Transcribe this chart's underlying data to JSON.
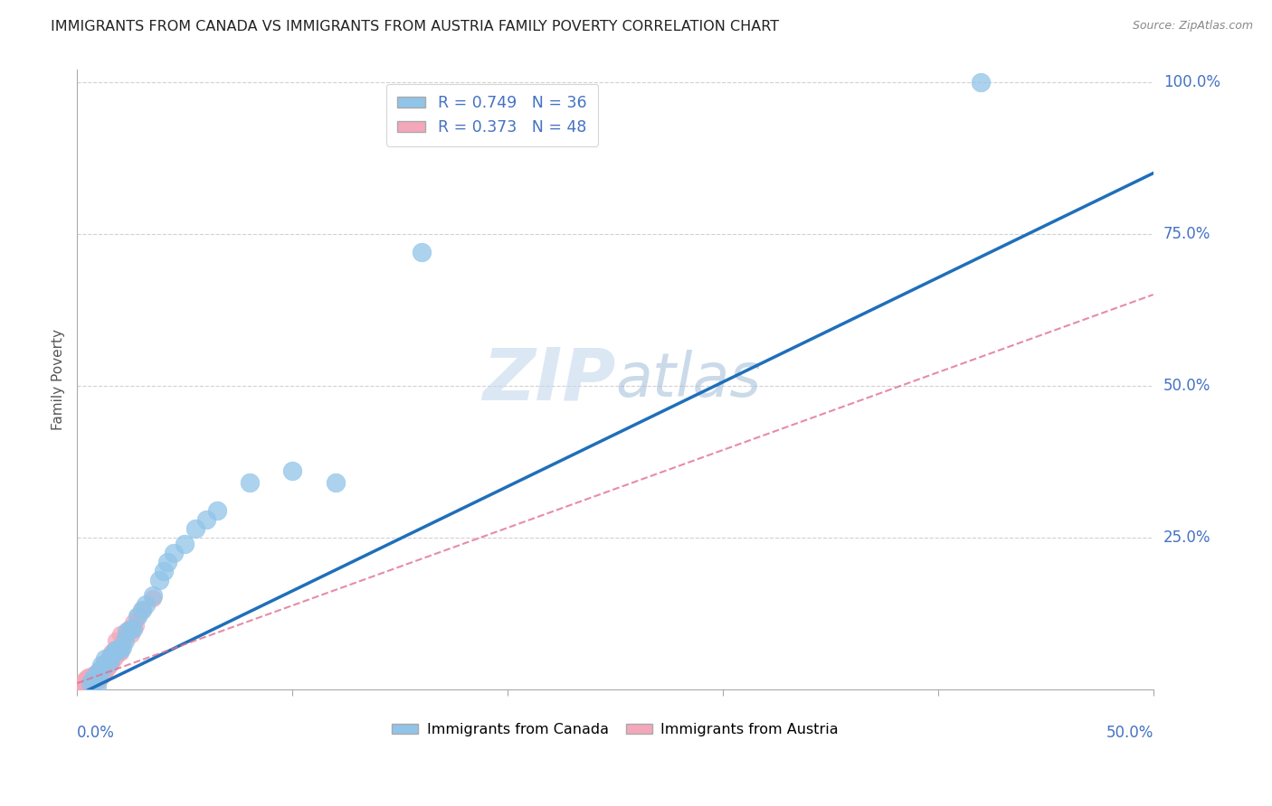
{
  "title": "IMMIGRANTS FROM CANADA VS IMMIGRANTS FROM AUSTRIA FAMILY POVERTY CORRELATION CHART",
  "source": "Source: ZipAtlas.com",
  "ylabel": "Family Poverty",
  "watermark_zip": "ZIP",
  "watermark_atlas": "atlas",
  "canada_R": 0.749,
  "canada_N": 36,
  "austria_R": 0.373,
  "austria_N": 48,
  "canada_color": "#90c4e8",
  "canada_line_color": "#1f6fba",
  "austria_color": "#f4a7bb",
  "austria_line_color": "#e07090",
  "background_color": "#ffffff",
  "grid_color": "#cccccc",
  "title_color": "#222222",
  "axis_label_color": "#4472c4",
  "canada_scatter_x": [
    0.006,
    0.007,
    0.008,
    0.009,
    0.01,
    0.01,
    0.011,
    0.012,
    0.013,
    0.015,
    0.016,
    0.017,
    0.018,
    0.02,
    0.021,
    0.022,
    0.023,
    0.025,
    0.026,
    0.028,
    0.03,
    0.032,
    0.035,
    0.038,
    0.04,
    0.042,
    0.045,
    0.05,
    0.055,
    0.06,
    0.065,
    0.08,
    0.1,
    0.12,
    0.16,
    0.42
  ],
  "canada_scatter_y": [
    0.01,
    0.015,
    0.02,
    0.005,
    0.025,
    0.03,
    0.04,
    0.035,
    0.05,
    0.045,
    0.055,
    0.06,
    0.065,
    0.065,
    0.07,
    0.08,
    0.095,
    0.1,
    0.1,
    0.12,
    0.13,
    0.14,
    0.155,
    0.18,
    0.195,
    0.21,
    0.225,
    0.24,
    0.265,
    0.28,
    0.295,
    0.34,
    0.36,
    0.34,
    0.72,
    1.0
  ],
  "austria_scatter_x": [
    0.002,
    0.003,
    0.003,
    0.004,
    0.004,
    0.005,
    0.005,
    0.005,
    0.006,
    0.006,
    0.006,
    0.007,
    0.007,
    0.008,
    0.008,
    0.009,
    0.009,
    0.01,
    0.01,
    0.01,
    0.011,
    0.011,
    0.012,
    0.012,
    0.013,
    0.013,
    0.014,
    0.015,
    0.015,
    0.016,
    0.016,
    0.017,
    0.017,
    0.018,
    0.018,
    0.019,
    0.02,
    0.02,
    0.021,
    0.022,
    0.023,
    0.024,
    0.025,
    0.026,
    0.027,
    0.028,
    0.03,
    0.035
  ],
  "austria_scatter_y": [
    0.005,
    0.008,
    0.015,
    0.01,
    0.018,
    0.008,
    0.012,
    0.02,
    0.01,
    0.015,
    0.022,
    0.012,
    0.018,
    0.015,
    0.025,
    0.018,
    0.028,
    0.015,
    0.022,
    0.03,
    0.02,
    0.035,
    0.025,
    0.04,
    0.03,
    0.045,
    0.035,
    0.04,
    0.055,
    0.045,
    0.06,
    0.05,
    0.065,
    0.055,
    0.08,
    0.065,
    0.06,
    0.09,
    0.075,
    0.085,
    0.095,
    0.1,
    0.09,
    0.11,
    0.105,
    0.12,
    0.13,
    0.15
  ],
  "canada_line_x0": 0.0,
  "canada_line_y0": -0.01,
  "canada_line_x1": 0.5,
  "canada_line_y1": 0.85,
  "austria_line_x0": 0.0,
  "austria_line_y0": 0.01,
  "austria_line_x1": 0.5,
  "austria_line_y1": 0.65,
  "xlim": [
    0.0,
    0.5
  ],
  "ylim": [
    0.0,
    1.02
  ],
  "ytick_vals": [
    0.0,
    0.25,
    0.5,
    0.75,
    1.0
  ],
  "ytick_labels": [
    "",
    "25.0%",
    "50.0%",
    "75.0%",
    "100.0%"
  ],
  "xtick_positions": [
    0.0,
    0.1,
    0.2,
    0.3,
    0.4,
    0.5
  ]
}
